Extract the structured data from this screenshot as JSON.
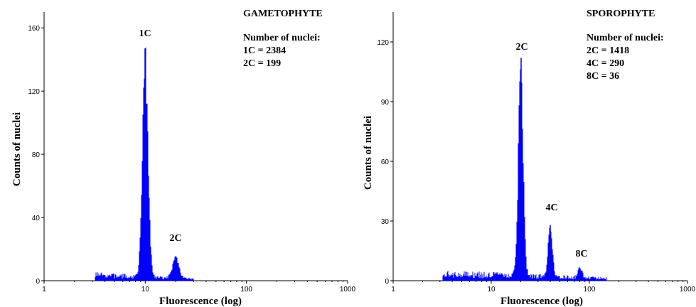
{
  "colors": {
    "histogram": "#0000ff",
    "axis": "#000000",
    "background": "#ffffff"
  },
  "chart_data": [
    {
      "type": "histogram",
      "title": "GAMETOPHYTE",
      "xlabel": "Fluorescence (log)",
      "ylabel": "Counts of nuclei",
      "x_scale": "log",
      "xlim": [
        1,
        1000
      ],
      "ylim": [
        0,
        170
      ],
      "x_ticks": [
        1,
        10,
        100,
        1000
      ],
      "x_tick_labels": [
        "1",
        "10",
        "100",
        "1000"
      ],
      "y_ticks": [
        0,
        40,
        80,
        120,
        160
      ],
      "y_tick_labels": [
        "0",
        "40",
        "80",
        "120",
        "160"
      ],
      "grid": false,
      "noise_range": [
        3.2,
        30
      ],
      "peaks": [
        {
          "label": "1C",
          "x": 10,
          "max": 147,
          "spread": 0.028
        },
        {
          "label": "2C",
          "x": 20,
          "max": 15,
          "spread": 0.03
        }
      ],
      "legend_heading": "Number of nuclei:",
      "legend_lines": [
        "1C = 2384",
        "2C = 199"
      ]
    },
    {
      "type": "histogram",
      "title": "SPOROPHYTE",
      "xlabel": "Fluorescence (log)",
      "ylabel": "Counts of nuclei",
      "x_scale": "log",
      "xlim": [
        1,
        1000
      ],
      "ylim": [
        0,
        135
      ],
      "x_ticks": [
        1,
        10,
        100,
        1000
      ],
      "x_tick_labels": [
        "1",
        "10",
        "100",
        "1000"
      ],
      "y_ticks": [
        0,
        30,
        60,
        90,
        120
      ],
      "y_tick_labels": [
        "0",
        "30",
        "60",
        "90",
        "120"
      ],
      "grid": false,
      "noise_range": [
        3.2,
        150
      ],
      "peaks": [
        {
          "label": "2C",
          "x": 20,
          "max": 112,
          "spread": 0.025
        },
        {
          "label": "4C",
          "x": 40,
          "max": 28,
          "spread": 0.022
        },
        {
          "label": "8C",
          "x": 80,
          "max": 6,
          "spread": 0.02
        }
      ],
      "legend_heading": "Number of nuclei:",
      "legend_lines": [
        "2C = 1418",
        "4C = 290",
        "8C = 36"
      ]
    }
  ]
}
